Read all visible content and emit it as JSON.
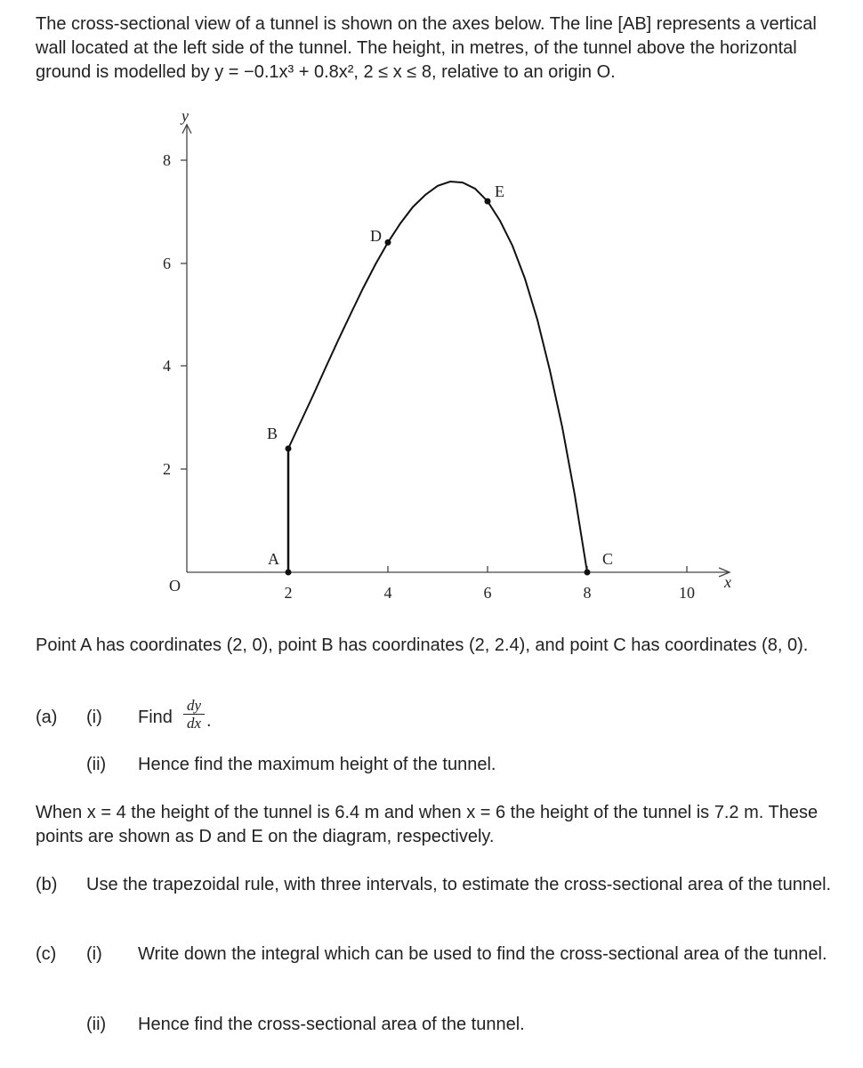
{
  "intro": "The cross-sectional view of a tunnel is shown on the axes below. The line [AB] represents a vertical wall located at the left side of the tunnel. The height, in metres, of the tunnel above the horizontal ground is modelled by y = −0.1x³ + 0.8x², 2 ≤ x ≤ 8, relative to an origin O.",
  "graph": {
    "y_label": "y",
    "x_label": "x",
    "origin": "O",
    "y_ticks": [
      "2",
      "4",
      "6",
      "8"
    ],
    "x_ticks": [
      "2",
      "4",
      "6",
      "8",
      "10"
    ],
    "points": {
      "A": "A",
      "B": "B",
      "C": "C",
      "D": "D",
      "E": "E"
    }
  },
  "paragraph_1": "Point A has coordinates (2, 0), point B has coordinates (2, 2.4), and point C has coordinates (8, 0).",
  "part_a": {
    "label": "(a)",
    "i": {
      "label": "(i)",
      "text": "Find",
      "numerator": "dy",
      "denominator": "dx",
      "end": "."
    },
    "ii": {
      "label": "(ii)",
      "text": "Hence find the maximum height of the tunnel."
    }
  },
  "paragraph_2": "When x = 4 the height of the tunnel is 6.4 m and when x = 6 the height of the tunnel is 7.2 m. These points are shown as D and E on the diagram, respectively.",
  "part_b": {
    "label": "(b)",
    "text": "Use the trapezoidal rule, with three intervals, to estimate the cross-sectional area of the tunnel."
  },
  "part_c": {
    "label": "(c)",
    "i": {
      "label": "(i)",
      "text": "Write down the integral which can be used to find the cross-sectional area of the tunnel."
    },
    "ii": {
      "label": "(ii)",
      "text": "Hence find the cross-sectional area of the tunnel."
    }
  }
}
